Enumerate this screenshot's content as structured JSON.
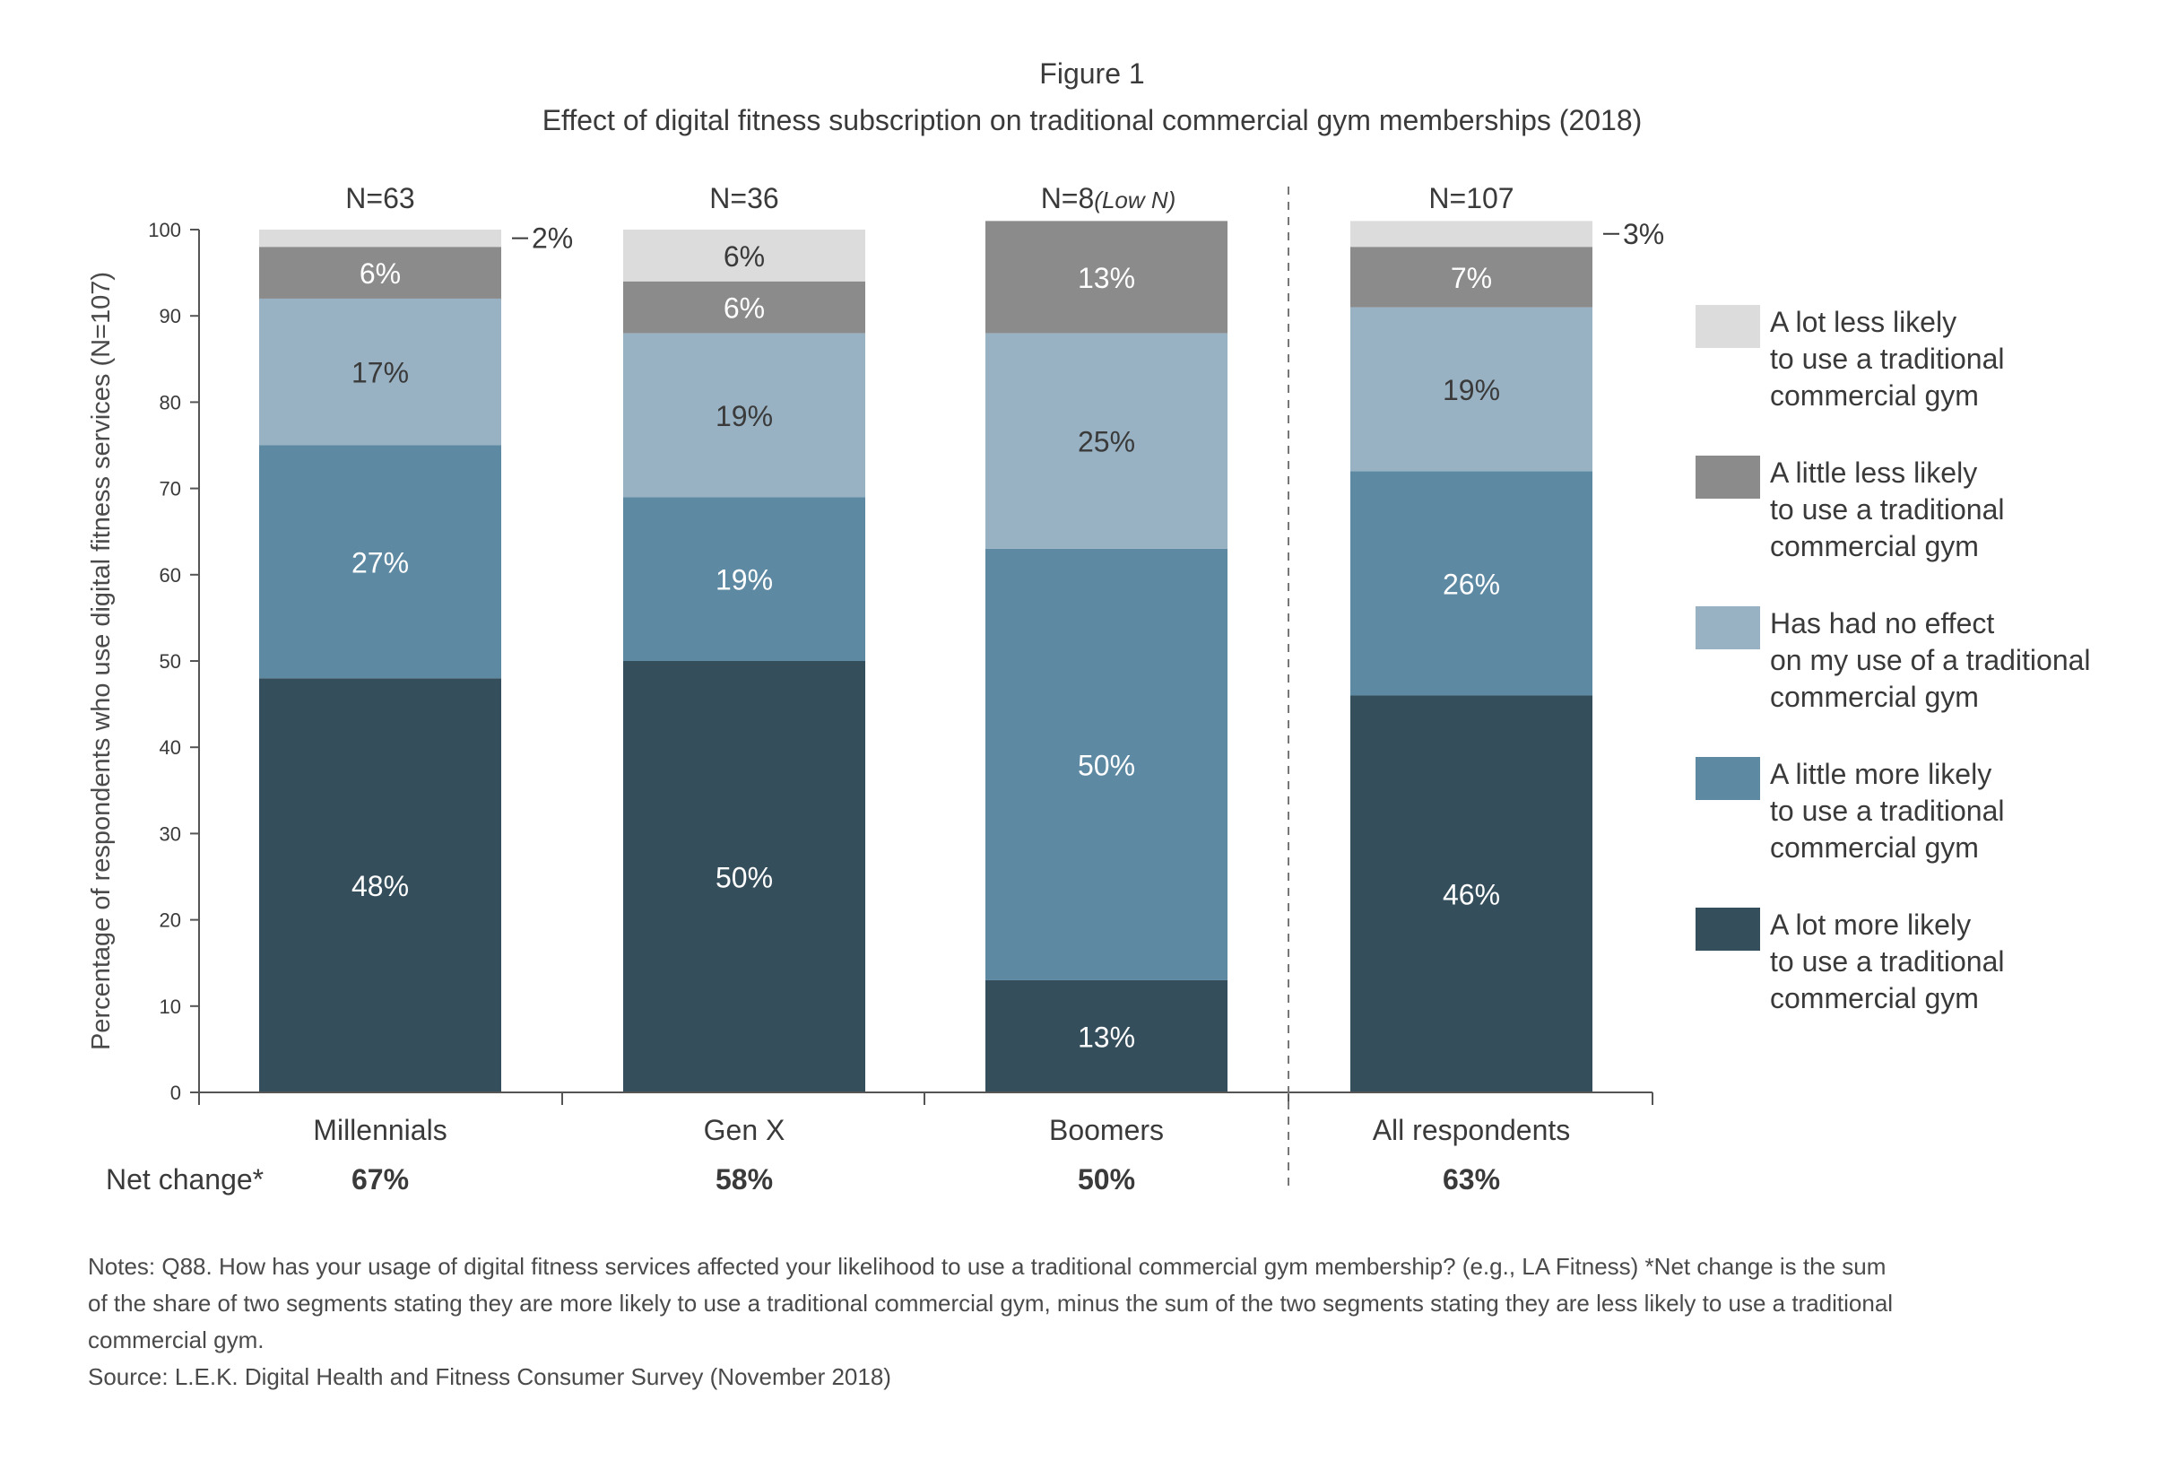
{
  "chart_data": {
    "type": "bar",
    "stacked": true,
    "figure_label": "Figure 1",
    "title": "Effect of digital fitness subscription on traditional commercial gym memberships (2018)",
    "ylabel": "Percentage of respondents who use digital fitness services (N=107)",
    "ylim": [
      0,
      100
    ],
    "yticks": [
      0,
      10,
      20,
      30,
      40,
      50,
      60,
      70,
      80,
      90,
      100
    ],
    "grid": false,
    "legend_position": "right",
    "categories": [
      "Millennials",
      "Gen X",
      "Boomers",
      "All respondents"
    ],
    "sample_sizes": [
      "N=63",
      "N=36",
      "N=8",
      "N=107"
    ],
    "sample_notes": [
      "",
      "",
      "(Low N)",
      ""
    ],
    "net_change_label": "Net change*",
    "net_change": [
      "67%",
      "58%",
      "50%",
      "63%"
    ],
    "series": [
      {
        "name": "A lot more likely to use a traditional commercial gym",
        "legend_lines": [
          "A lot more likely",
          "to use a traditional",
          "commercial gym"
        ],
        "color": "#354e5c",
        "label_color": "#ffffff",
        "values": [
          48,
          50,
          13,
          46
        ],
        "labels": [
          "48%",
          "50%",
          "13%",
          "46%"
        ]
      },
      {
        "name": "A little more likely to use a traditional commercial gym",
        "legend_lines": [
          "A little more likely",
          "to use a traditional",
          "commercial gym"
        ],
        "color": "#5e89a2",
        "label_color": "#ffffff",
        "values": [
          27,
          19,
          50,
          26
        ],
        "labels": [
          "27%",
          "19%",
          "50%",
          "26%"
        ]
      },
      {
        "name": "Has had no effect on my use of a traditional commercial gym",
        "legend_lines": [
          "Has had no effect",
          "on my use of a traditional",
          "commercial gym"
        ],
        "color": "#98b2c3",
        "label_color": "#3a3a3a",
        "values": [
          17,
          19,
          25,
          19
        ],
        "labels": [
          "17%",
          "19%",
          "25%",
          "19%"
        ]
      },
      {
        "name": "A little less likely to use a traditional commercial gym",
        "legend_lines": [
          "A little less likely",
          "to use a traditional",
          "commercial gym"
        ],
        "color": "#8b8b8b",
        "label_color": "#ffffff",
        "values": [
          6,
          6,
          13,
          7
        ],
        "labels": [
          "6%",
          "6%",
          "13%",
          "7%"
        ]
      },
      {
        "name": "A lot less likely to use a traditional commercial gym",
        "legend_lines": [
          "A lot less likely",
          "to use a traditional",
          "commercial gym"
        ],
        "color": "#dcdcdc",
        "label_color": "#3a3a3a",
        "values": [
          2,
          6,
          0,
          3
        ],
        "labels": [
          "2%",
          "6%",
          "",
          "3%"
        ]
      }
    ]
  },
  "notes": {
    "lines": [
      "Notes: Q88. How has your usage of digital fitness services affected your likelihood to use a traditional commercial gym membership? (e.g., LA Fitness) *Net change is the sum",
      "of the share of two segments stating they are more likely to use a traditional commercial gym, minus the sum of the two segments stating they are less likely to use a traditional",
      "commercial gym."
    ],
    "source": "Source: L.E.K. Digital Health and Fitness Consumer Survey (November 2018)"
  }
}
